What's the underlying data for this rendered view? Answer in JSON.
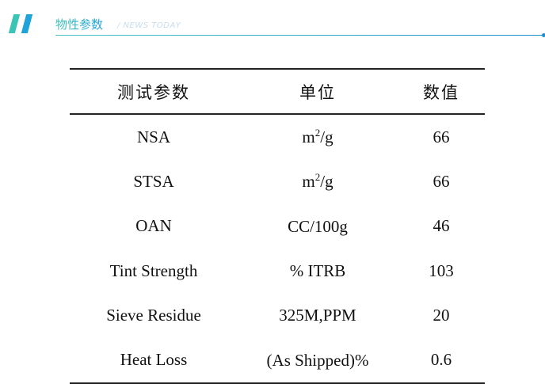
{
  "header": {
    "title": "物性参数",
    "subtitle": "/ NEWS TODAY",
    "accent_colors": [
      "#3cc4b4",
      "#1fa3d9"
    ]
  },
  "table": {
    "columns": [
      "测试参数",
      "单位",
      "数值"
    ],
    "rows": [
      {
        "param": "NSA",
        "unit": "m",
        "unit_sup": "2",
        "unit_rest": "/g",
        "value": "66"
      },
      {
        "param": "STSA",
        "unit": "m",
        "unit_sup": "2",
        "unit_rest": "/g",
        "value": "66"
      },
      {
        "param": "OAN",
        "unit": "CC/100g",
        "unit_sup": "",
        "unit_rest": "",
        "value": "46"
      },
      {
        "param": "Tint Strength",
        "unit": "% ITRB",
        "unit_sup": "",
        "unit_rest": "",
        "value": "103"
      },
      {
        "param": "Sieve Residue",
        "unit": "325M,PPM",
        "unit_sup": "",
        "unit_rest": "",
        "value": "20"
      },
      {
        "param": "Heat Loss",
        "unit": "(As Shipped)%",
        "unit_sup": "",
        "unit_rest": "",
        "value": "0.6"
      }
    ]
  }
}
